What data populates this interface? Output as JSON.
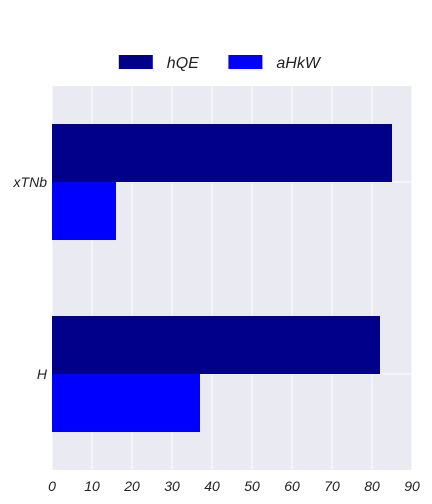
{
  "chart_data": {
    "type": "bar",
    "orientation": "horizontal",
    "categories": [
      "xTNb",
      "H"
    ],
    "series": [
      {
        "name": "hQE",
        "color": "#00008b",
        "values": [
          85,
          82
        ]
      },
      {
        "name": "aHkW",
        "color": "#0000ff",
        "values": [
          16,
          37
        ]
      }
    ],
    "xlim": [
      0,
      90
    ],
    "xticks": [
      0,
      10,
      20,
      30,
      40,
      50,
      60,
      70,
      80,
      90
    ],
    "xlabel": "",
    "ylabel": "",
    "title": "",
    "grid": true,
    "legend_position": "top-center"
  }
}
